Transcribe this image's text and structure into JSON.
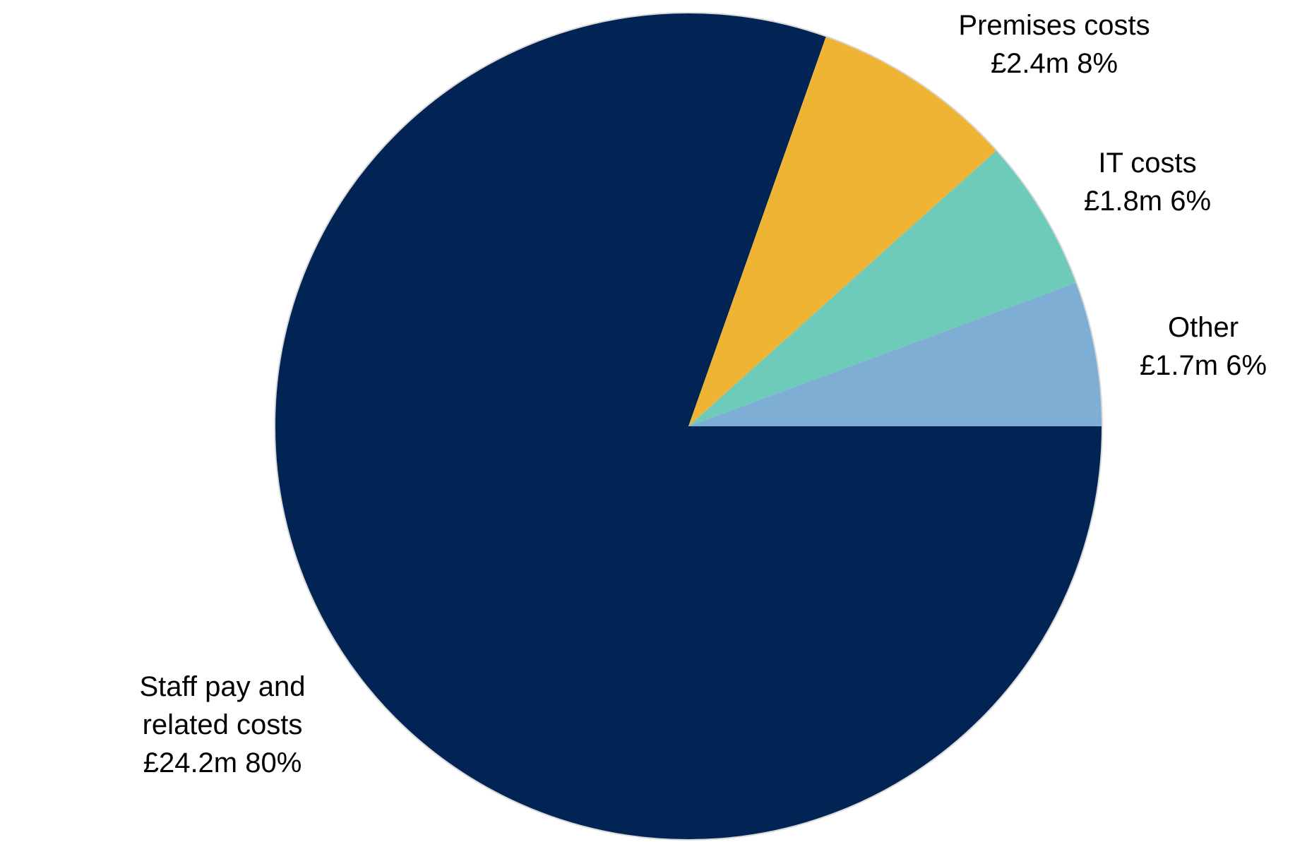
{
  "chart_data": {
    "type": "pie",
    "categories": [
      "Staff pay and\nrelated costs",
      "Premises costs",
      "IT costs",
      "Other"
    ],
    "values": [
      24.2,
      2.4,
      1.8,
      1.7
    ],
    "value_labels": [
      "£24.2m 80%",
      "£2.4m 8%",
      "£1.8m 6%",
      "£1.7m 6%"
    ],
    "colors": [
      "#012454",
      "#f0b434",
      "#6ecab9",
      "#7eaed3"
    ]
  }
}
